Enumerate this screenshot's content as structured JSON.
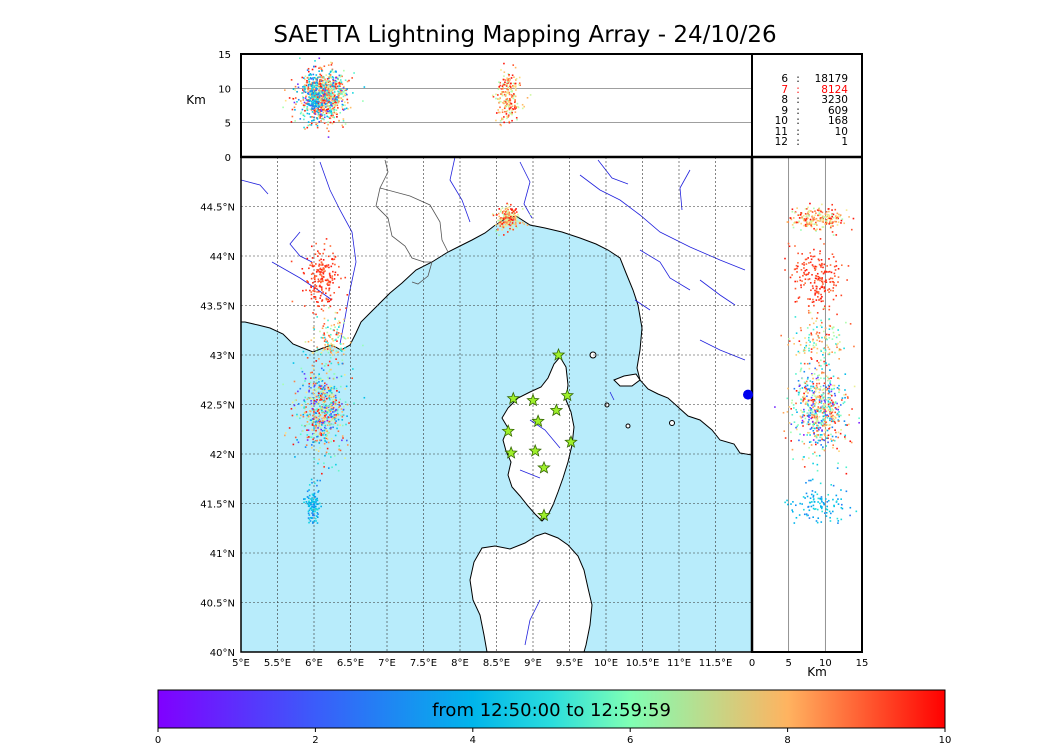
{
  "title": "SAETTA Lightning Mapping Array - 24/10/26",
  "colors": {
    "sea": "#b8ecfb",
    "river": "#2222dd",
    "coast": "#000000",
    "border": "#555555",
    "grid": "#333333",
    "station_fill": "#9ef02a",
    "station_stroke": "#336600"
  },
  "stats": [
    {
      "k": "6",
      "v": "18179",
      "highlight": false
    },
    {
      "k": "7",
      "v": "8124",
      "highlight": true
    },
    {
      "k": "8",
      "v": "3230",
      "highlight": false
    },
    {
      "k": "9",
      "v": "609",
      "highlight": false
    },
    {
      "k": "10",
      "v": "168",
      "highlight": false
    },
    {
      "k": "11",
      "v": "10",
      "highlight": false
    },
    {
      "k": "12",
      "v": "1",
      "highlight": false
    }
  ],
  "colorbar": {
    "label": "from 12:50:00 to 12:59:59",
    "min": 0,
    "max": 10,
    "ticks": [
      "0",
      "2",
      "4",
      "6",
      "8",
      "10"
    ],
    "colormap": "rainbow"
  },
  "chart_data": [
    {
      "type": "scatter",
      "panel": "map",
      "xlim": [
        5.0,
        12.0
      ],
      "ylim": [
        40.0,
        45.0
      ],
      "x_ticks": [
        "5°E",
        "5.5°E",
        "6°E",
        "6.5°E",
        "7°E",
        "7.5°E",
        "8°E",
        "8.5°E",
        "9°E",
        "9.5°E",
        "10°E",
        "10.5°E",
        "11°E",
        "11.5°E"
      ],
      "x_tick_values": [
        5,
        5.5,
        6,
        6.5,
        7,
        7.5,
        8,
        8.5,
        9,
        9.5,
        10,
        10.5,
        11,
        11.5
      ],
      "y_ticks": [
        "40°N",
        "40.5°N",
        "41°N",
        "41.5°N",
        "42°N",
        "42.5°N",
        "43°N",
        "43.5°N",
        "44°N",
        "44.5°N"
      ],
      "y_tick_values": [
        40,
        40.5,
        41,
        41.5,
        42,
        42.5,
        43,
        43.5,
        44,
        44.5
      ],
      "grid": true,
      "stations": [
        {
          "lon": 9.35,
          "lat": 43.0
        },
        {
          "lon": 8.73,
          "lat": 42.56
        },
        {
          "lon": 9.0,
          "lat": 42.54
        },
        {
          "lon": 9.47,
          "lat": 42.59
        },
        {
          "lon": 9.32,
          "lat": 42.44
        },
        {
          "lon": 9.07,
          "lat": 42.33
        },
        {
          "lon": 8.66,
          "lat": 42.23
        },
        {
          "lon": 9.52,
          "lat": 42.12
        },
        {
          "lon": 8.7,
          "lat": 42.01
        },
        {
          "lon": 9.03,
          "lat": 42.03
        },
        {
          "lon": 9.15,
          "lat": 41.86
        },
        {
          "lon": 9.15,
          "lat": 41.38
        }
      ],
      "clusters": [
        {
          "lon": 6.1,
          "lat": 43.78,
          "slon": 0.12,
          "slat": 0.15,
          "n": 200,
          "t": [
            8.5,
            9.8
          ]
        },
        {
          "lon": 6.2,
          "lat": 43.15,
          "slon": 0.14,
          "slat": 0.12,
          "n": 130,
          "t": [
            3,
            9.8
          ]
        },
        {
          "lon": 6.1,
          "lat": 42.45,
          "slon": 0.17,
          "slat": 0.22,
          "n": 600,
          "t": [
            0.2,
            10
          ]
        },
        {
          "lon": 5.98,
          "lat": 41.5,
          "slon": 0.05,
          "slat": 0.1,
          "n": 110,
          "t": [
            1.5,
            3.5
          ]
        },
        {
          "lon": 8.65,
          "lat": 44.38,
          "slon": 0.08,
          "slat": 0.06,
          "n": 220,
          "t": [
            5,
            10
          ]
        }
      ],
      "blue_marker": {
        "lon": 12.0,
        "lat": 42.6
      }
    },
    {
      "type": "scatter",
      "panel": "lon-altitude",
      "xlim": [
        5.0,
        12.0
      ],
      "ylim": [
        0,
        15
      ],
      "ylabel": "Km",
      "y_ticks": [
        "0",
        "5",
        "10",
        "15"
      ],
      "y_tick_values": [
        0,
        5,
        10,
        15
      ]
    },
    {
      "type": "scatter",
      "panel": "altitude-lat",
      "xlim": [
        0,
        15
      ],
      "ylim": [
        40.0,
        45.0
      ],
      "xlabel": "Km",
      "x_ticks": [
        "0",
        "5",
        "10",
        "15"
      ],
      "x_tick_values": [
        0,
        5,
        10,
        15
      ]
    }
  ]
}
